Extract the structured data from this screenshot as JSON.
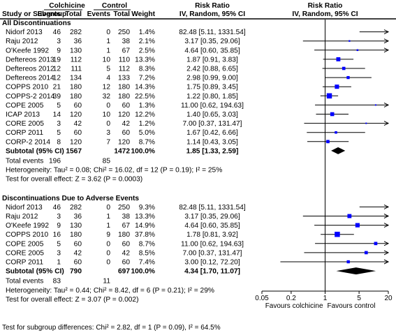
{
  "header": {
    "col_study": "Study or Subgroup",
    "group1": "Colchicine",
    "group2": "Control",
    "events": "Events",
    "total": "Total",
    "weight": "Weight",
    "rr_title": "Risk Ratio",
    "rr_method": "IV, Random, 95% CI"
  },
  "chart_data": {
    "type": "forest",
    "effect_measure": "Risk Ratio",
    "x_scale": "log",
    "x_ticks": [
      {
        "value": 0.05,
        "label": "0.05"
      },
      {
        "value": 0.2,
        "label": "0.2"
      },
      {
        "value": 1,
        "label": "1"
      },
      {
        "value": 5,
        "label": "5"
      },
      {
        "value": 20,
        "label": "20"
      }
    ],
    "xlim": [
      0.05,
      20
    ],
    "favours_left": "Favours colchicine",
    "favours_right": "Favours control",
    "subgroups": [
      {
        "title": "All Discontinuations",
        "studies": [
          {
            "name": "Nidorf 2013",
            "e1": "46",
            "n1": "282",
            "e2": "0",
            "n2": "250",
            "weight": "1.4%",
            "ci_text": "82.48 [5.11, 1331.54]",
            "rr": 82.48,
            "lo": 5.11,
            "hi": 1331.54
          },
          {
            "name": "Raju 2012",
            "e1": "3",
            "n1": "36",
            "e2": "1",
            "n2": "38",
            "weight": "2.1%",
            "ci_text": "3.17 [0.35, 29.06]",
            "rr": 3.17,
            "lo": 0.35,
            "hi": 29.06
          },
          {
            "name": "O'Keefe 1992",
            "e1": "9",
            "n1": "130",
            "e2": "1",
            "n2": "67",
            "weight": "2.5%",
            "ci_text": "4.64 [0.60, 35.85]",
            "rr": 4.64,
            "lo": 0.6,
            "hi": 35.85
          },
          {
            "name": "Deftereos 2013",
            "e1": "19",
            "n1": "112",
            "e2": "10",
            "n2": "110",
            "weight": "13.3%",
            "ci_text": "1.87 [0.91, 3.83]",
            "rr": 1.87,
            "lo": 0.91,
            "hi": 3.83
          },
          {
            "name": "Deftereos 2012",
            "e1": "12",
            "n1": "111",
            "e2": "5",
            "n2": "112",
            "weight": "8.3%",
            "ci_text": "2.42 [0.88, 6.65]",
            "rr": 2.42,
            "lo": 0.88,
            "hi": 6.65
          },
          {
            "name": "Deftereos 2014",
            "e1": "12",
            "n1": "134",
            "e2": "4",
            "n2": "133",
            "weight": "7.2%",
            "ci_text": "2.98 [0.99, 9.00]",
            "rr": 2.98,
            "lo": 0.99,
            "hi": 9.0
          },
          {
            "name": "COPPS 2010",
            "e1": "21",
            "n1": "180",
            "e2": "12",
            "n2": "180",
            "weight": "14.3%",
            "ci_text": "1.75 [0.89, 3.45]",
            "rr": 1.75,
            "lo": 0.89,
            "hi": 3.45
          },
          {
            "name": "COPPS-2 2014",
            "e1": "39",
            "n1": "180",
            "e2": "32",
            "n2": "180",
            "weight": "22.5%",
            "ci_text": "1.22 [0.80, 1.85]",
            "rr": 1.22,
            "lo": 0.8,
            "hi": 1.85
          },
          {
            "name": "COPE 2005",
            "e1": "5",
            "n1": "60",
            "e2": "0",
            "n2": "60",
            "weight": "1.3%",
            "ci_text": "11.00 [0.62, 194.63]",
            "rr": 11.0,
            "lo": 0.62,
            "hi": 194.63
          },
          {
            "name": "ICAP 2013",
            "e1": "14",
            "n1": "120",
            "e2": "10",
            "n2": "120",
            "weight": "12.2%",
            "ci_text": "1.40 [0.65, 3.03]",
            "rr": 1.4,
            "lo": 0.65,
            "hi": 3.03
          },
          {
            "name": "CORE 2005",
            "e1": "3",
            "n1": "42",
            "e2": "0",
            "n2": "42",
            "weight": "1.2%",
            "ci_text": "7.00 [0.37, 131.47]",
            "rr": 7.0,
            "lo": 0.37,
            "hi": 131.47
          },
          {
            "name": "CORP 2011",
            "e1": "5",
            "n1": "60",
            "e2": "3",
            "n2": "60",
            "weight": "5.0%",
            "ci_text": "1.67 [0.42, 6.66]",
            "rr": 1.67,
            "lo": 0.42,
            "hi": 6.66
          },
          {
            "name": "CORP-2 2014",
            "e1": "8",
            "n1": "120",
            "e2": "7",
            "n2": "120",
            "weight": "8.7%",
            "ci_text": "1.14 [0.43, 3.05]",
            "rr": 1.14,
            "lo": 0.43,
            "hi": 3.05
          }
        ],
        "subtotal": {
          "label": "Subtotal (95% CI)",
          "n1": "1567",
          "n2": "1472",
          "weight": "100.0%",
          "ci_text": "1.85 [1.33, 2.59]",
          "rr": 1.85,
          "lo": 1.33,
          "hi": 2.59
        },
        "total_events": {
          "label": "Total events",
          "e1": "196",
          "e2": "85"
        },
        "heterogeneity": "Heterogeneity: Tau² = 0.08; Chi² = 16.02, df = 12 (P = 0.19); I² = 25%",
        "overall": "Test for overall effect: Z = 3.62 (P = 0.0003)"
      },
      {
        "title": "Discontinuations Due to Adverse Events",
        "studies": [
          {
            "name": "Nidorf 2013",
            "e1": "46",
            "n1": "282",
            "e2": "0",
            "n2": "250",
            "weight": "9.3%",
            "ci_text": "82.48 [5.11, 1331.54]",
            "rr": 82.48,
            "lo": 5.11,
            "hi": 1331.54
          },
          {
            "name": "Raju 2012",
            "e1": "3",
            "n1": "36",
            "e2": "1",
            "n2": "38",
            "weight": "13.3%",
            "ci_text": "3.17 [0.35, 29.06]",
            "rr": 3.17,
            "lo": 0.35,
            "hi": 29.06
          },
          {
            "name": "O'Keefe 1992",
            "e1": "9",
            "n1": "130",
            "e2": "1",
            "n2": "67",
            "weight": "14.9%",
            "ci_text": "4.64 [0.60, 35.85]",
            "rr": 4.64,
            "lo": 0.6,
            "hi": 35.85
          },
          {
            "name": "COPPS 2010",
            "e1": "16",
            "n1": "180",
            "e2": "9",
            "n2": "180",
            "weight": "37.8%",
            "ci_text": "1.78 [0.81, 3.92]",
            "rr": 1.78,
            "lo": 0.81,
            "hi": 3.92
          },
          {
            "name": "COPE 2005",
            "e1": "5",
            "n1": "60",
            "e2": "0",
            "n2": "60",
            "weight": "8.7%",
            "ci_text": "11.00 [0.62, 194.63]",
            "rr": 11.0,
            "lo": 0.62,
            "hi": 194.63
          },
          {
            "name": "CORE 2005",
            "e1": "3",
            "n1": "42",
            "e2": "0",
            "n2": "42",
            "weight": "8.5%",
            "ci_text": "7.00 [0.37, 131.47]",
            "rr": 7.0,
            "lo": 0.37,
            "hi": 131.47
          },
          {
            "name": "CORP 2011",
            "e1": "1",
            "n1": "60",
            "e2": "0",
            "n2": "60",
            "weight": "7.4%",
            "ci_text": "3.00 [0.12, 72.20]",
            "rr": 3.0,
            "lo": 0.12,
            "hi": 72.2
          }
        ],
        "subtotal": {
          "label": "Subtotal (95% CI)",
          "n1": "790",
          "n2": "697",
          "weight": "100.0%",
          "ci_text": "4.34 [1.70, 11.07]",
          "rr": 4.34,
          "lo": 1.7,
          "hi": 11.07
        },
        "total_events": {
          "label": "Total events",
          "e1": "83",
          "e2": "11"
        },
        "heterogeneity": "Heterogeneity: Tau² = 0.44; Chi² = 8.42, df = 6 (P = 0.21); I² = 29%",
        "overall": "Test for overall effect: Z = 3.07 (P = 0.002)"
      }
    ],
    "subgroup_test": "Test for subgroup differences: Chi² = 2.82, df = 1 (P = 0.09), I² = 64.5%",
    "colors": {
      "marker": "#0000ff",
      "diamond": "#000000",
      "line": "#000000"
    }
  }
}
